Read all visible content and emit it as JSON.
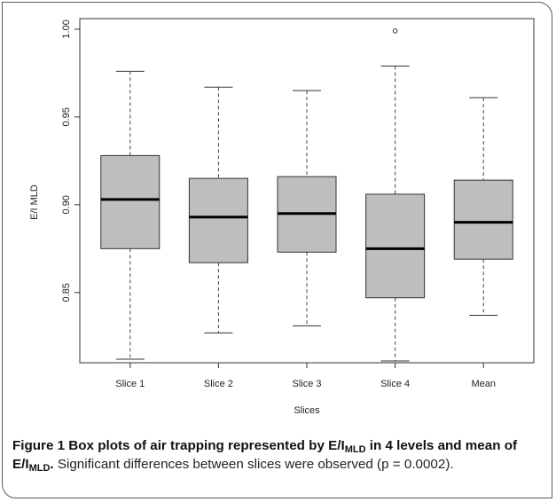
{
  "chart_data": {
    "type": "boxplot",
    "categories": [
      "Slice 1",
      "Slice 2",
      "Slice 3",
      "Slice 4",
      "Mean"
    ],
    "xlabel": "Slices",
    "ylabel": "E/I MLD",
    "ylim": [
      0.81,
      1.006
    ],
    "yticks": [
      "0.85",
      "0.90",
      "0.95",
      "1.00"
    ],
    "ytick_values": [
      0.85,
      0.9,
      0.95,
      1.0
    ],
    "box_color": "#bebebe",
    "series": [
      {
        "min": 0.812,
        "q1": 0.875,
        "median": 0.903,
        "q3": 0.928,
        "max": 0.976,
        "outliers": []
      },
      {
        "min": 0.827,
        "q1": 0.867,
        "median": 0.893,
        "q3": 0.915,
        "max": 0.967,
        "outliers": []
      },
      {
        "min": 0.831,
        "q1": 0.873,
        "median": 0.895,
        "q3": 0.916,
        "max": 0.965,
        "outliers": []
      },
      {
        "min": 0.811,
        "q1": 0.847,
        "median": 0.875,
        "q3": 0.906,
        "max": 0.979,
        "outliers": [
          0.999
        ]
      },
      {
        "min": 0.837,
        "q1": 0.869,
        "median": 0.89,
        "q3": 0.914,
        "max": 0.961,
        "outliers": []
      }
    ]
  },
  "caption": {
    "label": "Figure 1",
    "title_a": " Box plots of air trapping represented by E/I",
    "title_sub1": "MLD",
    "title_b": " in 4 levels and mean of E/I",
    "title_sub2": "MLD",
    "title_end": ".",
    "body": " Significant differences between slices were observed (p = 0.0002)."
  }
}
